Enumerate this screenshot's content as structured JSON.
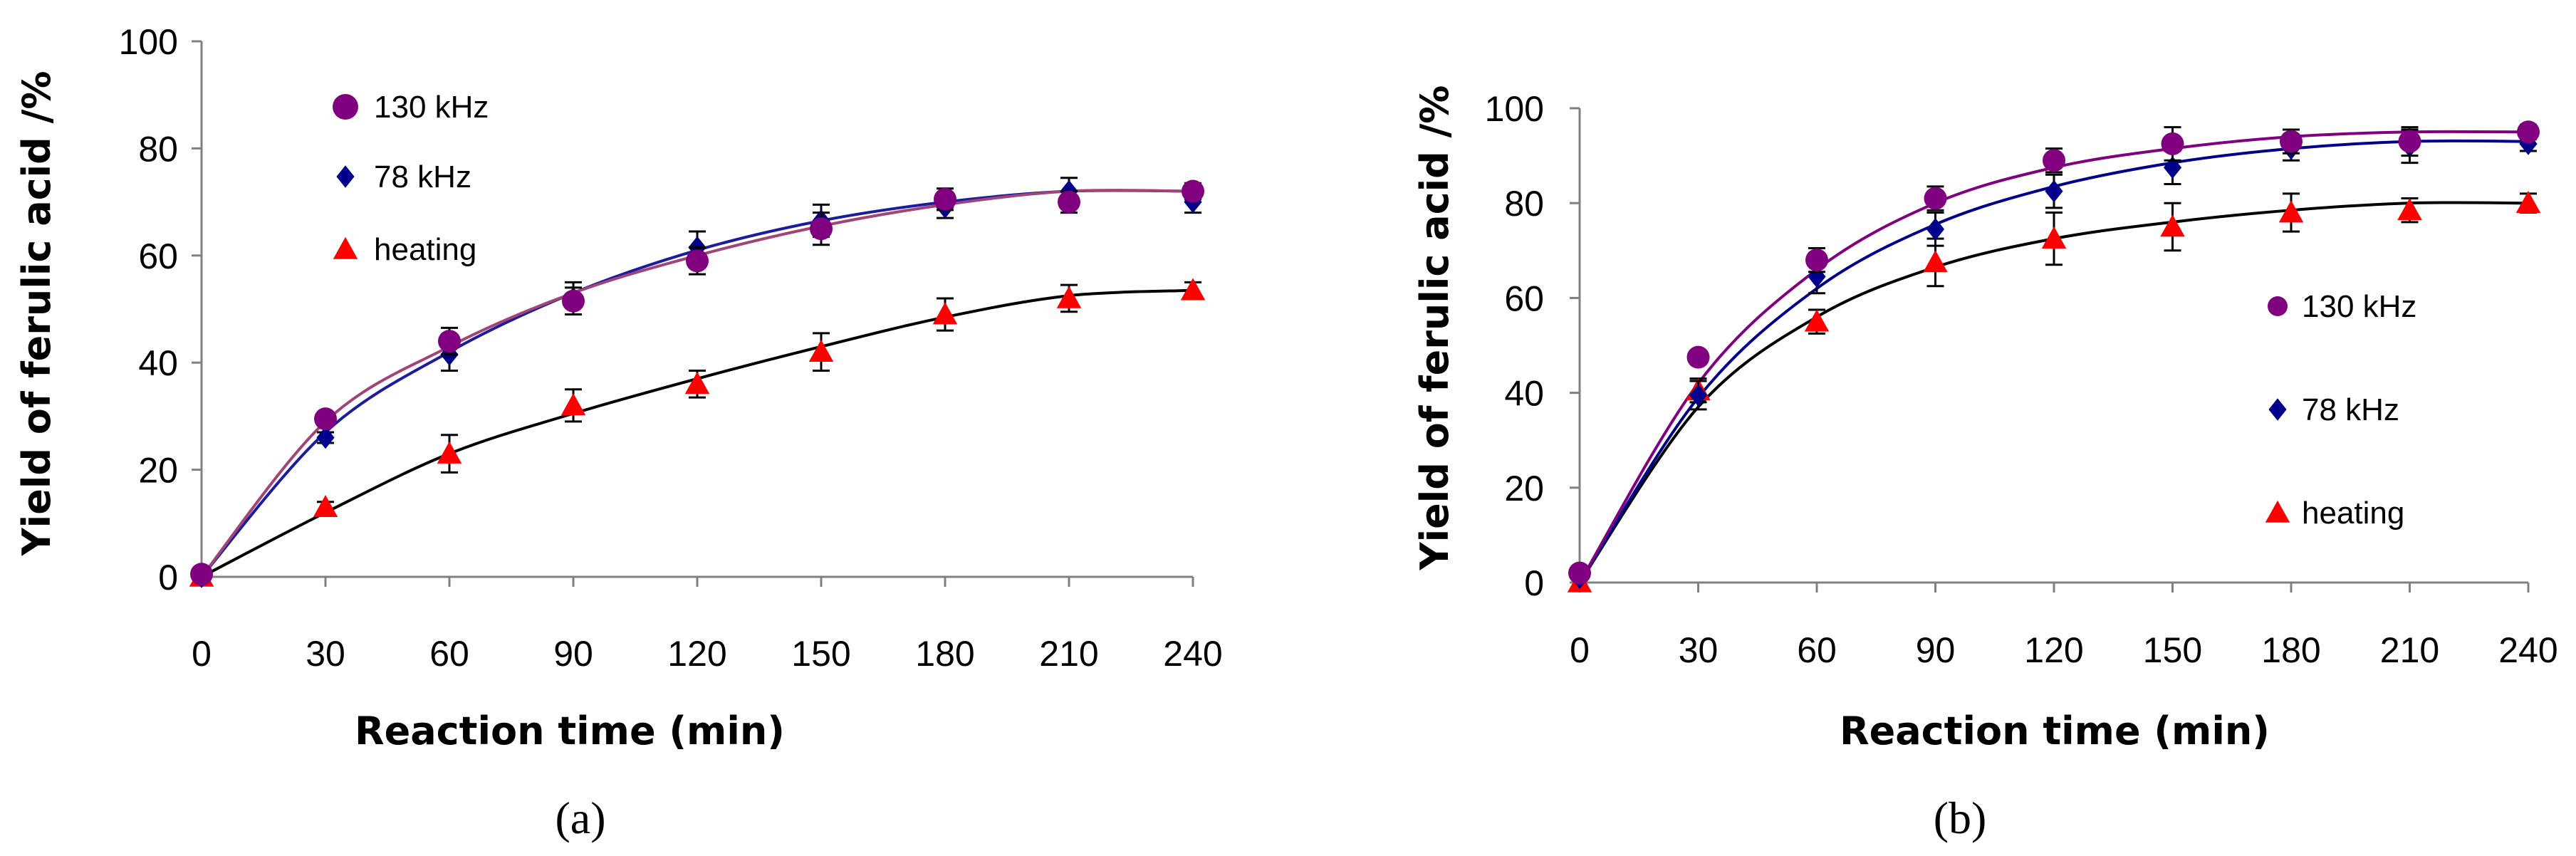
{
  "colors": {
    "axis": "#808080",
    "error_bar": "#000000"
  },
  "chart_data": [
    {
      "panel": "(a)",
      "type": "scatter",
      "xlabel": "Reaction time (min)",
      "ylabel": "Yield of ferulic acid /%",
      "xlim": [
        0,
        240
      ],
      "ylim": [
        0,
        100
      ],
      "x_ticks": [
        0,
        30,
        60,
        90,
        120,
        150,
        180,
        210,
        240
      ],
      "x_tick_labels": [
        "0",
        "30",
        "60",
        "90",
        "120",
        "150",
        "180",
        "210",
        "240"
      ],
      "y_ticks": [
        0,
        20,
        40,
        60,
        80,
        100
      ],
      "y_tick_labels": [
        "0",
        "20",
        "40",
        "60",
        "80",
        "100"
      ],
      "legend_position": "upper-left",
      "series": [
        {
          "name": "130 kHz",
          "marker": "circle",
          "color": "#800080",
          "line_color": "#a0447a",
          "x": [
            0,
            30,
            60,
            90,
            120,
            150,
            180,
            210,
            240
          ],
          "y": [
            0.5,
            29.5,
            44,
            51.5,
            59,
            65,
            70.5,
            70,
            72
          ],
          "err": [
            0,
            1,
            2.5,
            2.5,
            2.5,
            3,
            2,
            2,
            1.5
          ],
          "fit": [
            0,
            29,
            43,
            53,
            60,
            65.5,
            69.5,
            72,
            72
          ]
        },
        {
          "name": "78 kHz",
          "marker": "diamond",
          "color": "#00008b",
          "line_color": "#1c1c9c",
          "x": [
            0,
            30,
            60,
            90,
            120,
            150,
            180,
            210,
            240
          ],
          "y": [
            0,
            26,
            41.5,
            52,
            61.5,
            66.5,
            69,
            72,
            70
          ],
          "err": [
            0,
            1,
            3,
            3,
            3,
            3,
            2,
            2.5,
            2
          ],
          "fit": [
            0,
            27,
            42,
            53,
            61,
            66.5,
            70,
            72,
            72
          ]
        },
        {
          "name": "heating",
          "marker": "triangle",
          "color": "#ff0000",
          "line_color": "#000000",
          "x": [
            0,
            30,
            60,
            90,
            120,
            150,
            180,
            210,
            240
          ],
          "y": [
            0,
            13,
            23,
            32,
            36,
            42,
            49,
            52,
            53.5
          ],
          "err": [
            0,
            1,
            3.5,
            3,
            2.5,
            3.5,
            3,
            2.5,
            1.5
          ],
          "fit": [
            0,
            12,
            23,
            30.5,
            37,
            43,
            48.5,
            52.5,
            53.5
          ]
        }
      ]
    },
    {
      "panel": "(b)",
      "type": "scatter",
      "xlabel": "Reaction time (min)",
      "ylabel": "Yield of ferulic acid /%",
      "xlim": [
        0,
        240
      ],
      "ylim": [
        0,
        100
      ],
      "x_ticks": [
        0,
        30,
        60,
        90,
        120,
        150,
        180,
        210,
        240
      ],
      "x_tick_labels": [
        "0",
        "30",
        "60",
        "90",
        "120",
        "150",
        "180",
        "210",
        "240"
      ],
      "y_ticks": [
        0,
        20,
        40,
        60,
        80,
        100
      ],
      "y_tick_labels": [
        "0",
        "20",
        "40",
        "60",
        "80",
        "100"
      ],
      "legend_position": "lower-right",
      "series": [
        {
          "name": "130 kHz",
          "marker": "circle",
          "color": "#800080",
          "line_color": "#800080",
          "x": [
            0,
            30,
            60,
            90,
            120,
            150,
            180,
            210,
            240
          ],
          "y": [
            2,
            47.5,
            68,
            81,
            89,
            92.5,
            93,
            93,
            95
          ],
          "err": [
            0,
            1,
            2.5,
            2.5,
            2.5,
            3.5,
            2.5,
            3,
            1.5
          ],
          "fit": [
            0,
            42,
            66,
            80,
            87.5,
            91.5,
            94,
            95,
            95
          ]
        },
        {
          "name": "78 kHz",
          "marker": "diamond",
          "color": "#00008b",
          "line_color": "#00008b",
          "x": [
            0,
            30,
            60,
            90,
            120,
            150,
            180,
            210,
            240
          ],
          "y": [
            1,
            39.5,
            64.5,
            74.5,
            82.5,
            87.5,
            91.5,
            92,
            92.5
          ],
          "err": [
            0,
            3,
            3.5,
            3.5,
            3.5,
            3.5,
            2.5,
            3.5,
            1.5
          ],
          "fit": [
            0,
            39,
            62,
            75.5,
            83.5,
            88.5,
            91.5,
            93,
            93
          ]
        },
        {
          "name": "heating",
          "marker": "triangle",
          "color": "#ff0000",
          "line_color": "#000000",
          "x": [
            0,
            30,
            60,
            90,
            120,
            150,
            180,
            210,
            240
          ],
          "y": [
            0,
            40.5,
            55,
            67.5,
            72.5,
            75,
            78,
            78.5,
            80
          ],
          "err": [
            0,
            2.5,
            2.5,
            5,
            5.5,
            5,
            4,
            2.5,
            2
          ],
          "fit": [
            0,
            37,
            56,
            66.5,
            72.5,
            76,
            78.5,
            80,
            80
          ]
        }
      ]
    }
  ]
}
